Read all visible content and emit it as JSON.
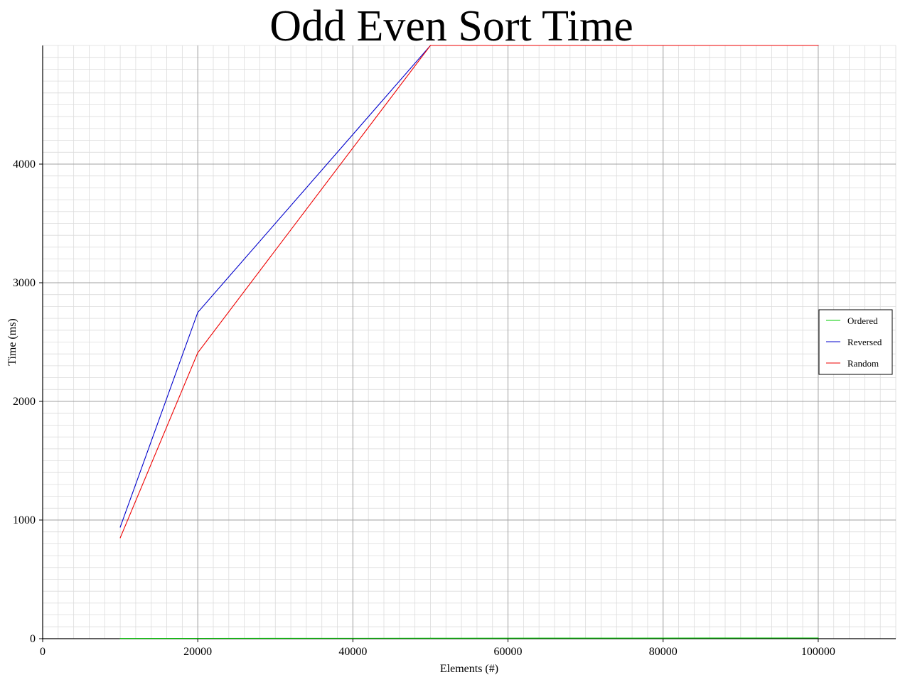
{
  "chart_data": {
    "type": "line",
    "title": "Odd Even Sort Time",
    "xlabel": "Elements (#)",
    "ylabel": "Time (ms)",
    "xlim": [
      0,
      110000
    ],
    "ylim": [
      0,
      5000
    ],
    "xticks": [
      0,
      20000,
      40000,
      60000,
      80000,
      100000
    ],
    "yticks": [
      0,
      1000,
      2000,
      3000,
      4000
    ],
    "grid": true,
    "legend_position": "right",
    "x": [
      10000,
      20000,
      50000,
      100000
    ],
    "series": [
      {
        "name": "Ordered",
        "color": "#00cc00",
        "values": [
          2,
          3,
          4,
          6
        ]
      },
      {
        "name": "Reversed",
        "color": "#0000cc",
        "values": [
          940,
          2750,
          5000,
          5000
        ]
      },
      {
        "name": "Random",
        "color": "#ee0000",
        "values": [
          850,
          2410,
          5000,
          5000
        ]
      }
    ]
  }
}
